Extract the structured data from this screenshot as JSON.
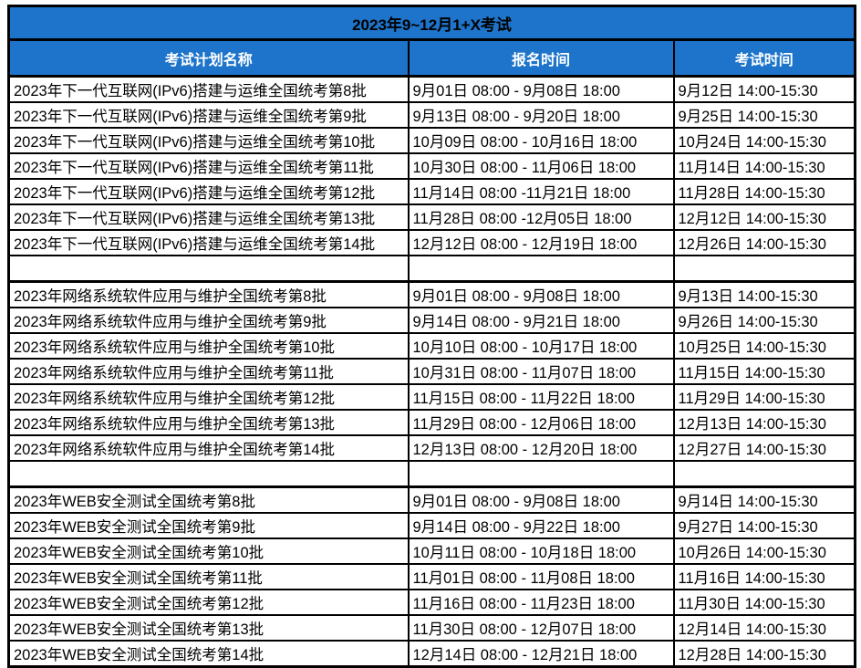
{
  "title": "2023年9~12月1+X考试",
  "columns": {
    "plan_name": "考试计划名称",
    "signup_time": "报名时间",
    "exam_time": "考试时间"
  },
  "colors": {
    "accent_blue": "#1d74ca",
    "border_black": "#000000",
    "header_text": "#ffffff",
    "title_text": "#000000"
  },
  "rows": [
    {
      "name": "2023年下一代互联网(IPv6)搭建与运维全国统考第8批",
      "signup": "9月01日 08:00 - 9月08日 18:00",
      "exam": "9月12日 14:00-15:30"
    },
    {
      "name": "2023年下一代互联网(IPv6)搭建与运维全国统考第9批",
      "signup": "9月13日 08:00 - 9月20日 18:00",
      "exam": "9月25日 14:00-15:30"
    },
    {
      "name": "2023年下一代互联网(IPv6)搭建与运维全国统考第10批",
      "signup": "10月09日 08:00 - 10月16日 18:00",
      "exam": "10月24日 14:00-15:30"
    },
    {
      "name": "2023年下一代互联网(IPv6)搭建与运维全国统考第11批",
      "signup": "10月30日 08:00 - 11月06日 18:00",
      "exam": "11月14日 14:00-15:30"
    },
    {
      "name": "2023年下一代互联网(IPv6)搭建与运维全国统考第12批",
      "signup": "11月14日 08:00 -11月21日 18:00",
      "exam": "11月28日 14:00-15:30"
    },
    {
      "name": "2023年下一代互联网(IPv6)搭建与运维全国统考第13批",
      "signup": "11月28日 08:00 -12月05日 18:00",
      "exam": "12月12日 14:00-15:30"
    },
    {
      "name": "2023年下一代互联网(IPv6)搭建与运维全国统考第14批",
      "signup": "12月12日 08:00 - 12月19日 18:00",
      "exam": "12月26日 14:00-15:30"
    },
    {
      "name": "",
      "signup": "",
      "exam": ""
    },
    {
      "name": "2023年网络系统软件应用与维护全国统考第8批",
      "signup": "9月01日 08:00 - 9月08日 18:00",
      "exam": "9月13日 14:00-15:30"
    },
    {
      "name": "2023年网络系统软件应用与维护全国统考第9批",
      "signup": "9月14日 08:00 - 9月21日 18:00",
      "exam": "9月26日 14:00-15:30"
    },
    {
      "name": "2023年网络系统软件应用与维护全国统考第10批",
      "signup": "10月10日 08:00 - 10月17日 18:00",
      "exam": "10月25日 14:00-15:30"
    },
    {
      "name": "2023年网络系统软件应用与维护全国统考第11批",
      "signup": "10月31日 08:00 - 11月07日 18:00",
      "exam": "11月15日 14:00-15:30"
    },
    {
      "name": "2023年网络系统软件应用与维护全国统考第12批",
      "signup": "11月15日 08:00 - 11月22日 18:00",
      "exam": "11月29日 14:00-15:30"
    },
    {
      "name": "2023年网络系统软件应用与维护全国统考第13批",
      "signup": "11月29日 08:00 - 12月06日 18:00",
      "exam": "12月13日 14:00-15:30"
    },
    {
      "name": "2023年网络系统软件应用与维护全国统考第14批",
      "signup": "12月13日 08:00 - 12月20日 18:00",
      "exam": "12月27日 14:00-15:30"
    },
    {
      "name": "",
      "signup": "",
      "exam": ""
    },
    {
      "name": "2023年WEB安全测试全国统考第8批",
      "signup": "9月01日 08:00 - 9月08日 18:00",
      "exam": "9月14日 14:00-15:30"
    },
    {
      "name": "2023年WEB安全测试全国统考第9批",
      "signup": "9月14日 08:00 - 9月22日 18:00",
      "exam": "9月27日 14:00-15:30"
    },
    {
      "name": "2023年WEB安全测试全国统考第10批",
      "signup": "10月11日 08:00 - 10月18日 18:00",
      "exam": "10月26日 14:00-15:30"
    },
    {
      "name": "2023年WEB安全测试全国统考第11批",
      "signup": "11月01日 08:00 - 11月08日 18:00",
      "exam": "11月16日 14:00-15:30"
    },
    {
      "name": "2023年WEB安全测试全国统考第12批",
      "signup": "11月16日 08:00 - 11月23日 18:00",
      "exam": "11月30日 14:00-15:30"
    },
    {
      "name": "2023年WEB安全测试全国统考第13批",
      "signup": "11月30日 08:00 - 12月07日 18:00",
      "exam": "12月14日 14:00-15:30"
    },
    {
      "name": "2023年WEB安全测试全国统考第14批",
      "signup": "12月14日 08:00 - 12月21日 18:00",
      "exam": "12月28日 14:00-15:30"
    }
  ]
}
